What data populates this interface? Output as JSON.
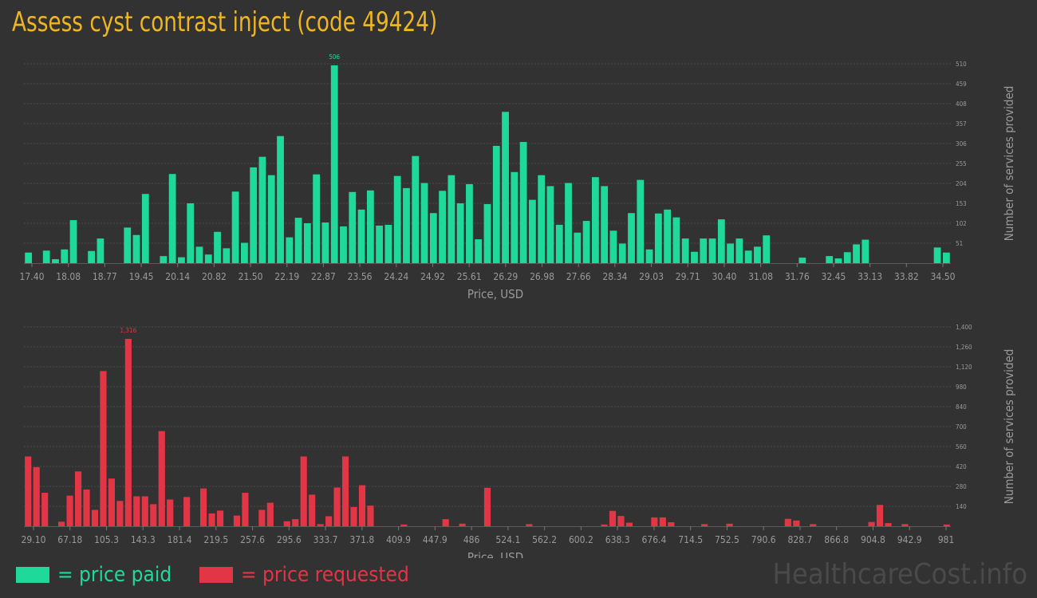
{
  "title": "Assess cyst contrast inject (code 49424)",
  "legend": {
    "paid_label": "= price paid",
    "requested_label": "= price requested",
    "paid_color": "#1fd99a",
    "requested_color": "#e23545"
  },
  "watermark": "HealthcareCost.info",
  "chart_data": [
    {
      "type": "bar",
      "series_name": "price paid",
      "color": "#1fd99a",
      "xlabel": "Price, USD",
      "ylabel": "Number of services provided",
      "ylim": [
        0,
        510
      ],
      "yticks": [
        "51",
        "102",
        "153",
        "204",
        "255",
        "306",
        "357",
        "408",
        "459",
        "510"
      ],
      "xticks": [
        "17.40",
        "18.08",
        "18.77",
        "19.45",
        "20.14",
        "20.82",
        "21.50",
        "22.19",
        "22.87",
        "23.56",
        "24.24",
        "24.92",
        "25.61",
        "26.29",
        "26.98",
        "27.66",
        "28.34",
        "29.03",
        "29.71",
        "30.40",
        "31.08",
        "31.76",
        "32.45",
        "33.13",
        "33.82",
        "34.50"
      ],
      "peak_label": "506",
      "grid": true,
      "values": [
        27,
        0,
        32,
        10,
        35,
        110,
        0,
        31,
        63,
        0,
        0,
        91,
        72,
        177,
        0,
        18,
        228,
        15,
        153,
        42,
        22,
        80,
        38,
        183,
        52,
        245,
        272,
        225,
        325,
        66,
        116,
        102,
        227,
        104,
        506,
        94,
        182,
        137,
        186,
        96,
        98,
        223,
        192,
        274,
        205,
        128,
        185,
        225,
        153,
        202,
        61,
        151,
        300,
        387,
        233,
        310,
        162,
        225,
        197,
        98,
        205,
        78,
        108,
        220,
        197,
        83,
        50,
        128,
        213,
        35,
        127,
        137,
        117,
        63,
        29,
        63,
        63,
        112,
        50,
        63,
        32,
        42,
        71,
        0,
        0,
        0,
        14,
        0,
        0,
        18,
        12,
        28,
        48,
        60,
        0,
        0,
        0,
        0,
        0,
        0,
        0,
        40,
        27
      ]
    },
    {
      "type": "bar",
      "series_name": "price requested",
      "color": "#e23545",
      "xlabel": "Price, USD",
      "ylabel": "Number of services provided",
      "ylim": [
        0,
        1400
      ],
      "yticks": [
        "140",
        "280",
        "420",
        "560",
        "700",
        "840",
        "980",
        "1,120",
        "1,260",
        "1,400"
      ],
      "xticks": [
        "29.10",
        "67.18",
        "105.3",
        "143.3",
        "181.4",
        "219.5",
        "257.6",
        "295.6",
        "333.7",
        "371.8",
        "409.9",
        "447.9",
        "486",
        "524.1",
        "562.2",
        "600.2",
        "638.3",
        "676.4",
        "714.5",
        "752.5",
        "790.6",
        "828.7",
        "866.8",
        "904.8",
        "942.9",
        "981"
      ],
      "peak_label": "1,316",
      "grid": true,
      "values": [
        490,
        415,
        235,
        0,
        32,
        215,
        385,
        258,
        115,
        1090,
        335,
        178,
        1316,
        210,
        210,
        155,
        668,
        188,
        0,
        205,
        0,
        265,
        90,
        110,
        0,
        75,
        235,
        0,
        115,
        165,
        0,
        35,
        50,
        490,
        222,
        15,
        70,
        272,
        490,
        135,
        288,
        145,
        0,
        0,
        0,
        12,
        0,
        0,
        0,
        0,
        50,
        0,
        18,
        0,
        0,
        270,
        0,
        0,
        0,
        0,
        15,
        0,
        0,
        0,
        0,
        0,
        0,
        0,
        0,
        12,
        108,
        72,
        25,
        0,
        0,
        62,
        62,
        28,
        0,
        0,
        0,
        15,
        0,
        0,
        18,
        0,
        0,
        0,
        0,
        0,
        0,
        52,
        40,
        0,
        15,
        0,
        0,
        0,
        0,
        0,
        0,
        30,
        150,
        22,
        0,
        15,
        0,
        0,
        0,
        0,
        12
      ]
    }
  ]
}
